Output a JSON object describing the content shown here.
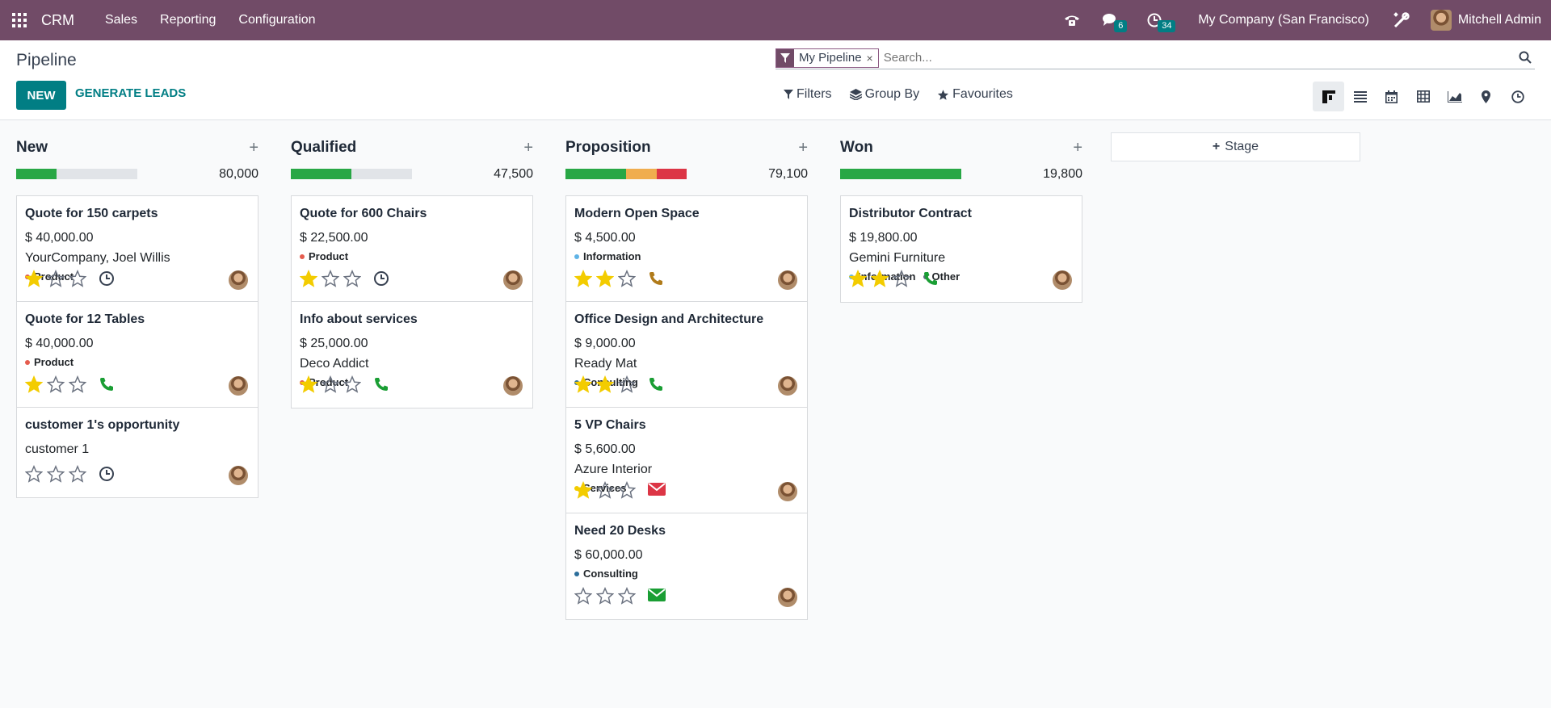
{
  "navbar": {
    "app_name": "CRM",
    "menu": [
      "Sales",
      "Reporting",
      "Configuration"
    ],
    "messages_count": "6",
    "activities_count": "34",
    "company": "My Company (San Francisco)",
    "user": "Mitchell Admin"
  },
  "control_panel": {
    "title": "Pipeline",
    "new_label": "NEW",
    "generate_label": "GENERATE LEADS",
    "facet": "My Pipeline",
    "facet_close": "×",
    "search_placeholder": "Search...",
    "filters_label": "Filters",
    "groupby_label": "Group By",
    "favourites_label": "Favourites"
  },
  "colors": {
    "navbar": "#714B67",
    "primary": "#017e84",
    "progress_green": "#28a745",
    "progress_orange": "#f0ad4e",
    "progress_red": "#dc3545",
    "star_yellow": "#f3cc00"
  },
  "columns": [
    {
      "title": "New",
      "add": "+",
      "total": "80,000",
      "progress": [
        {
          "color": "#28a745",
          "fraction": 0.333
        }
      ],
      "cards": [
        {
          "name": "Quote for 150 carpets",
          "amount": "$ 40,000.00",
          "partner": "YourCompany, Joel Willis",
          "tags": [
            {
              "label": "Product",
              "color": "#e55c4e"
            }
          ],
          "stars": 1,
          "activity": "clock"
        },
        {
          "name": "Quote for 12 Tables",
          "amount": "$ 40,000.00",
          "partner": "",
          "tags": [
            {
              "label": "Product",
              "color": "#e55c4e"
            }
          ],
          "stars": 1,
          "activity": "phone"
        },
        {
          "name": "customer 1's opportunity",
          "amount": "",
          "partner": "customer 1",
          "tags": [],
          "stars": 0,
          "activity": "clock"
        }
      ]
    },
    {
      "title": "Qualified",
      "add": "+",
      "total": "47,500",
      "progress": [
        {
          "color": "#28a745",
          "fraction": 0.5
        }
      ],
      "cards": [
        {
          "name": "Quote for 600 Chairs",
          "amount": "$ 22,500.00",
          "partner": "",
          "tags": [
            {
              "label": "Product",
              "color": "#e55c4e"
            }
          ],
          "stars": 1,
          "activity": "clock"
        },
        {
          "name": "Info about services",
          "amount": "$ 25,000.00",
          "partner": "Deco Addict",
          "tags": [
            {
              "label": "Product",
              "color": "#e55c4e"
            }
          ],
          "stars": 1,
          "activity": "phone"
        }
      ]
    },
    {
      "title": "Proposition",
      "add": "+",
      "total": "79,100",
      "progress": [
        {
          "color": "#28a745",
          "fraction": 0.5
        },
        {
          "color": "#f0ad4e",
          "fraction": 0.25
        },
        {
          "color": "#dc3545",
          "fraction": 0.25
        }
      ],
      "cards": [
        {
          "name": "Modern Open Space",
          "amount": "$ 4,500.00",
          "partner": "",
          "tags": [
            {
              "label": "Information",
              "color": "#5fb3e6"
            }
          ],
          "stars": 2,
          "activity": "phone-warning"
        },
        {
          "name": "Office Design and Architecture",
          "amount": "$ 9,000.00",
          "partner": "Ready Mat",
          "tags": [
            {
              "label": "Consulting",
              "color": "#2c6e9b"
            }
          ],
          "stars": 2,
          "activity": "phone"
        },
        {
          "name": "5 VP Chairs",
          "amount": "$ 5,600.00",
          "partner": "Azure Interior",
          "tags": [
            {
              "label": "Services",
              "color": "#f3cc00"
            }
          ],
          "stars": 1,
          "activity": "mail-overdue"
        },
        {
          "name": "Need 20 Desks",
          "amount": "$ 60,000.00",
          "partner": "",
          "tags": [
            {
              "label": "Consulting",
              "color": "#2c6e9b"
            }
          ],
          "stars": 0,
          "activity": "mail"
        }
      ]
    },
    {
      "title": "Won",
      "add": "+",
      "total": "19,800",
      "progress": [
        {
          "color": "#28a745",
          "fraction": 1.0
        }
      ],
      "cards": [
        {
          "name": "Distributor Contract",
          "amount": "$ 19,800.00",
          "partner": "Gemini Furniture",
          "tags": [
            {
              "label": "Information",
              "color": "#5fb3e6"
            },
            {
              "label": "Other",
              "color": "#5a6b7a"
            }
          ],
          "stars": 2,
          "activity": "phone"
        }
      ]
    }
  ],
  "add_stage_label": "Stage"
}
